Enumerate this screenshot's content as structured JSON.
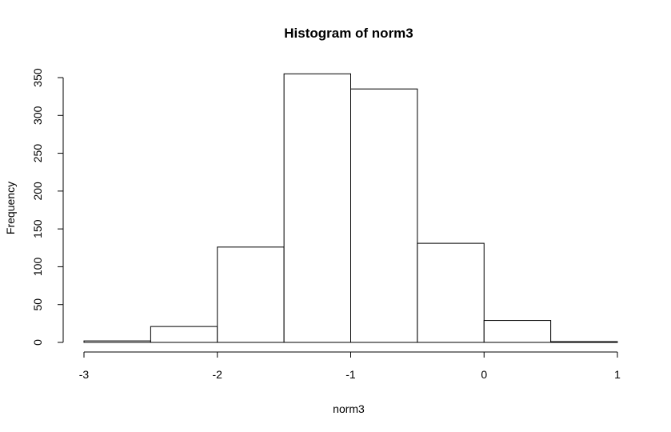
{
  "chart_data": {
    "type": "bar",
    "title": "Histogram of norm3",
    "xlabel": "norm3",
    "ylabel": "Frequency",
    "bins": [
      {
        "x0": -3.0,
        "x1": -2.5,
        "count": 2
      },
      {
        "x0": -2.5,
        "x1": -2.0,
        "count": 21
      },
      {
        "x0": -2.0,
        "x1": -1.5,
        "count": 126
      },
      {
        "x0": -1.5,
        "x1": -1.0,
        "count": 355
      },
      {
        "x0": -1.0,
        "x1": -0.5,
        "count": 335
      },
      {
        "x0": -0.5,
        "x1": 0.0,
        "count": 131
      },
      {
        "x0": 0.0,
        "x1": 0.5,
        "count": 29
      },
      {
        "x0": 0.5,
        "x1": 1.0,
        "count": 1
      }
    ],
    "xlim": [
      -3,
      1
    ],
    "ylim": [
      0,
      350
    ],
    "x_ticks": [
      -3,
      -2,
      -1,
      0,
      1
    ],
    "x_tick_labels": [
      "-3",
      "-2",
      "-1",
      "0",
      "1"
    ],
    "y_ticks": [
      0,
      50,
      100,
      150,
      200,
      250,
      300,
      350
    ],
    "y_tick_labels": [
      "0",
      "50",
      "100",
      "150",
      "200",
      "250",
      "300",
      "350"
    ],
    "grid": false,
    "colors": {
      "fill": "#ffffff",
      "stroke": "#000000"
    }
  }
}
